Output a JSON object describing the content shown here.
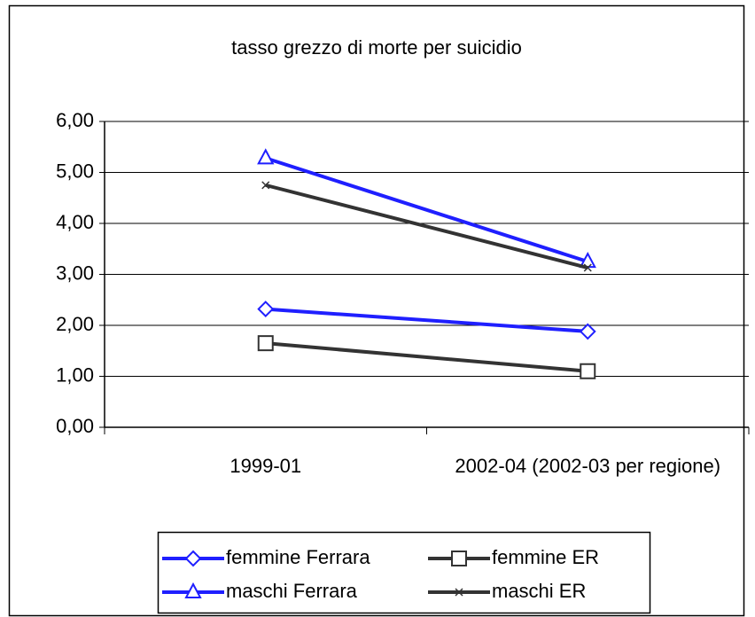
{
  "chart_data": {
    "type": "line",
    "title": "tasso grezzo di morte per suicidio",
    "categories": [
      "1999-01",
      "2002-04 (2002-03 per regione)"
    ],
    "series": [
      {
        "name": "femmine Ferrara",
        "color": "#1f1fff",
        "marker": "diamond",
        "values": [
          2.32,
          1.88
        ]
      },
      {
        "name": "femmine ER",
        "color": "#333333",
        "marker": "square",
        "values": [
          1.65,
          1.1
        ]
      },
      {
        "name": "maschi Ferrara",
        "color": "#1f1fff",
        "marker": "triangle",
        "values": [
          5.28,
          3.25
        ]
      },
      {
        "name": "maschi ER",
        "color": "#333333",
        "marker": "x",
        "values": [
          4.75,
          3.13
        ]
      }
    ],
    "ylim": [
      0,
      6
    ],
    "yticks": [
      {
        "value": 0,
        "label": "0,00"
      },
      {
        "value": 1,
        "label": "1,00"
      },
      {
        "value": 2,
        "label": "2,00"
      },
      {
        "value": 3,
        "label": "3,00"
      },
      {
        "value": 4,
        "label": "4,00"
      },
      {
        "value": 5,
        "label": "5,00"
      },
      {
        "value": 6,
        "label": "6,00"
      }
    ],
    "grid": true,
    "legend": "bottom"
  }
}
